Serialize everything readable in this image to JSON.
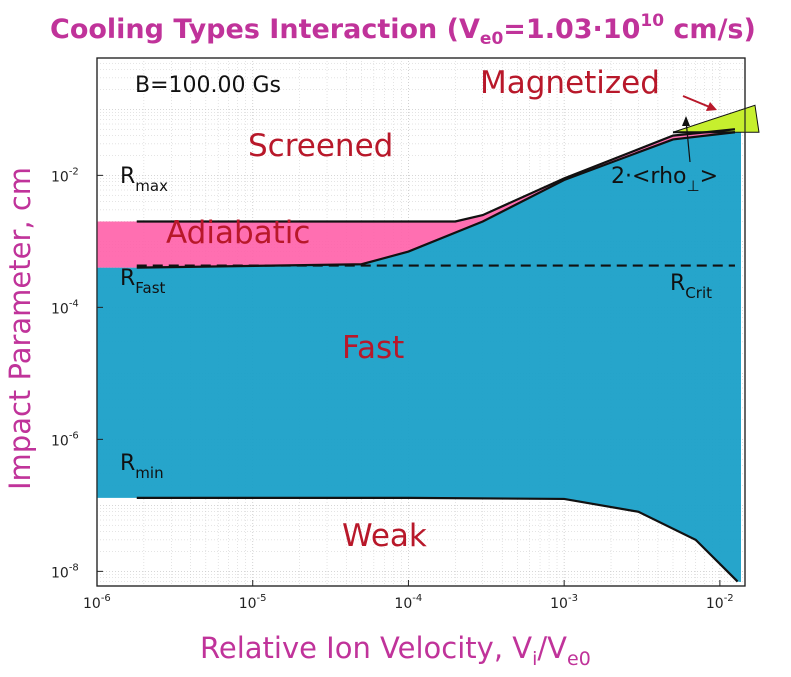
{
  "chart_data": {
    "type": "area",
    "title": "Cooling Types Interaction",
    "title_param": {
      "symbol": "V",
      "sub": "e0",
      "value": "=1.03·10",
      "exp": "10",
      "unit": " cm/s)"
    },
    "xlabel": {
      "text": "Relative Ion Velocity, V",
      "sub_i": "i",
      "slash": "/V",
      "sub_e0": "e0"
    },
    "ylabel": "Impact Parameter, cm",
    "xscale": "log",
    "yscale": "log",
    "xlim": [
      1e-06,
      0.0145
    ],
    "ylim": [
      6e-09,
      0.6
    ],
    "xticks": [
      {
        "value": 1e-06,
        "exp": "-6"
      },
      {
        "value": 1e-05,
        "exp": "-5"
      },
      {
        "value": 0.0001,
        "exp": "-4"
      },
      {
        "value": 0.001,
        "exp": "-3"
      },
      {
        "value": 0.01,
        "exp": "-2"
      }
    ],
    "yticks": [
      {
        "value": 1e-08,
        "exp": "-8"
      },
      {
        "value": 1e-06,
        "exp": "-6"
      },
      {
        "value": 0.0001,
        "exp": "-4"
      },
      {
        "value": 0.01,
        "exp": "-2"
      }
    ],
    "tick_base": "10",
    "grid": true,
    "annotation_B": "B=100.00 Gs",
    "colors": {
      "fast": "#1aa0c8",
      "adiabatic": "#ff5fa8",
      "magnetized": "#c6ef2e",
      "title": "#c0339a",
      "region_text": "#b8182a"
    },
    "series": [
      {
        "name": "R_max",
        "x": [
          1.8e-06,
          0.0002,
          0.0003,
          0.001,
          0.005,
          0.0125
        ],
        "y": [
          0.002,
          0.002,
          0.0025,
          0.009,
          0.04,
          0.05
        ]
      },
      {
        "name": "R_Fast",
        "x": [
          1.8e-06,
          5e-05,
          0.0001,
          0.0003,
          0.001,
          0.005,
          0.0125
        ],
        "y": [
          0.0004,
          0.00045,
          0.0007,
          0.002,
          0.0085,
          0.035,
          0.045
        ]
      },
      {
        "name": "R_Crit",
        "x": [
          1.8e-06,
          0.0125
        ],
        "y": [
          0.00043,
          0.00043
        ]
      },
      {
        "name": "R_min",
        "x": [
          1.8e-06,
          0.0001,
          0.001,
          0.003,
          0.007,
          0.013
        ],
        "y": [
          1.3e-07,
          1.3e-07,
          1.25e-07,
          8e-08,
          3e-08,
          7e-09
        ]
      },
      {
        "name": "2<rho_>",
        "x": [
          0.005,
          0.0125
        ],
        "y": [
          0.045,
          0.045
        ]
      }
    ],
    "region_labels": {
      "screened": "Screened",
      "adiabatic": "Adiabatic",
      "fast": "Fast",
      "weak": "Weak",
      "magnetized": "Magnetized"
    },
    "line_labels": {
      "rmax": {
        "main": "R",
        "sub": "max"
      },
      "rfast": {
        "main": "R",
        "sub": "Fast"
      },
      "rcrit": {
        "main": "R",
        "sub": "Crit"
      },
      "rmin": {
        "main": "R",
        "sub": "min"
      },
      "rho": {
        "main": "2·<rho",
        "sub": "⊥",
        "tail": ">"
      }
    }
  }
}
